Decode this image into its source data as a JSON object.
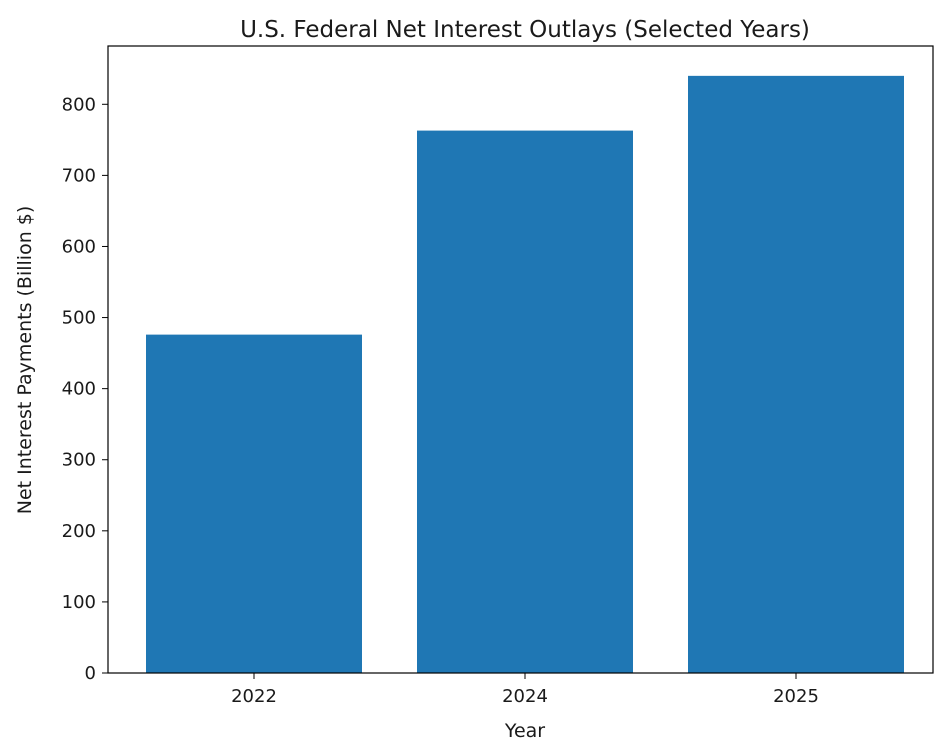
{
  "chart_data": {
    "type": "bar",
    "title": "U.S. Federal Net Interest Outlays (Selected Years)",
    "xlabel": "Year",
    "ylabel": "Net Interest Payments (Billion $)",
    "categories": [
      "2022",
      "2024",
      "2025"
    ],
    "values": [
      476,
      763,
      840
    ],
    "ylim": [
      0,
      882
    ],
    "yticks": [
      0,
      100,
      200,
      300,
      400,
      500,
      600,
      700,
      800
    ],
    "grid": false,
    "legend": "none",
    "colors": {
      "bar": "#1f77b4",
      "axis": "#000000",
      "text": "#1a1a1a"
    }
  }
}
